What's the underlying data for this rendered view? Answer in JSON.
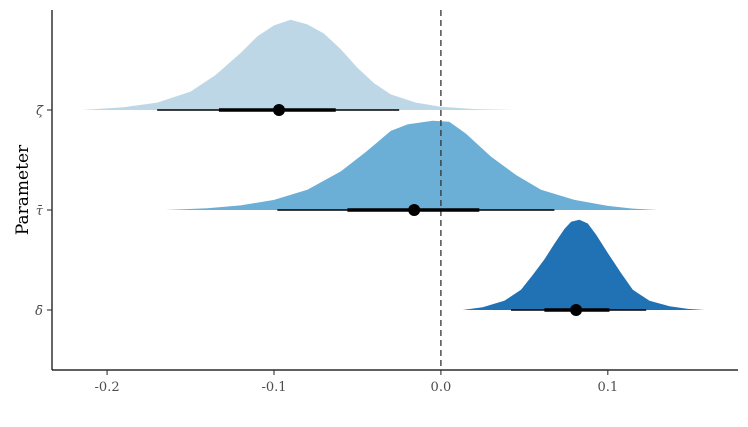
{
  "chart_data": {
    "type": "halfeye",
    "title": "",
    "xlabel": "",
    "ylabel": "Parameter",
    "xlim": [
      -0.233,
      0.178
    ],
    "xticks": [
      -0.2,
      -0.1,
      0.0,
      0.1
    ],
    "xtick_labels": [
      "-0.2",
      "-0.1",
      "0.0",
      "0.1"
    ],
    "reference_line": {
      "x": 0.0,
      "style": "dashed"
    },
    "grid": false,
    "legend": "none",
    "categories": [
      "ζ̄",
      "τ̄",
      "δ̄"
    ],
    "series": [
      {
        "name": "ζ̄",
        "color": "#bdd7e7",
        "point_estimate": -0.097,
        "interval_66": [
          -0.133,
          -0.063
        ],
        "interval_95": [
          -0.17,
          -0.025
        ],
        "support": [
          -0.215,
          0.045
        ],
        "density": [
          [
            -0.215,
            0.0
          ],
          [
            -0.19,
            0.03
          ],
          [
            -0.17,
            0.08
          ],
          [
            -0.15,
            0.2
          ],
          [
            -0.135,
            0.38
          ],
          [
            -0.12,
            0.62
          ],
          [
            -0.11,
            0.8
          ],
          [
            -0.1,
            0.92
          ],
          [
            -0.09,
            0.98
          ],
          [
            -0.08,
            0.93
          ],
          [
            -0.07,
            0.83
          ],
          [
            -0.06,
            0.66
          ],
          [
            -0.05,
            0.46
          ],
          [
            -0.04,
            0.29
          ],
          [
            -0.03,
            0.17
          ],
          [
            -0.015,
            0.08
          ],
          [
            0.0,
            0.035
          ],
          [
            0.02,
            0.01
          ],
          [
            0.045,
            0.0
          ]
        ]
      },
      {
        "name": "τ̄",
        "color": "#6baed6",
        "point_estimate": -0.016,
        "interval_66": [
          -0.056,
          0.023
        ],
        "interval_95": [
          -0.098,
          0.068
        ],
        "support": [
          -0.165,
          0.13
        ],
        "density": [
          [
            -0.165,
            0.0
          ],
          [
            -0.14,
            0.02
          ],
          [
            -0.12,
            0.05
          ],
          [
            -0.1,
            0.11
          ],
          [
            -0.08,
            0.22
          ],
          [
            -0.06,
            0.42
          ],
          [
            -0.045,
            0.63
          ],
          [
            -0.03,
            0.86
          ],
          [
            -0.02,
            0.93
          ],
          [
            -0.005,
            0.97
          ],
          [
            0.005,
            0.96
          ],
          [
            0.015,
            0.83
          ],
          [
            0.03,
            0.58
          ],
          [
            0.045,
            0.38
          ],
          [
            0.06,
            0.22
          ],
          [
            0.08,
            0.11
          ],
          [
            0.1,
            0.045
          ],
          [
            0.115,
            0.015
          ],
          [
            0.13,
            0.0
          ]
        ]
      },
      {
        "name": "δ̄",
        "color": "#2171b5",
        "point_estimate": 0.081,
        "interval_66": [
          0.062,
          0.101
        ],
        "interval_95": [
          0.042,
          0.123
        ],
        "support": [
          0.013,
          0.158
        ],
        "density": [
          [
            0.013,
            0.0
          ],
          [
            0.025,
            0.03
          ],
          [
            0.038,
            0.1
          ],
          [
            0.048,
            0.22
          ],
          [
            0.055,
            0.38
          ],
          [
            0.062,
            0.55
          ],
          [
            0.068,
            0.72
          ],
          [
            0.074,
            0.88
          ],
          [
            0.078,
            0.96
          ],
          [
            0.083,
            0.98
          ],
          [
            0.088,
            0.94
          ],
          [
            0.093,
            0.82
          ],
          [
            0.1,
            0.62
          ],
          [
            0.108,
            0.4
          ],
          [
            0.115,
            0.22
          ],
          [
            0.125,
            0.1
          ],
          [
            0.137,
            0.04
          ],
          [
            0.148,
            0.012
          ],
          [
            0.158,
            0.0
          ]
        ]
      }
    ]
  }
}
